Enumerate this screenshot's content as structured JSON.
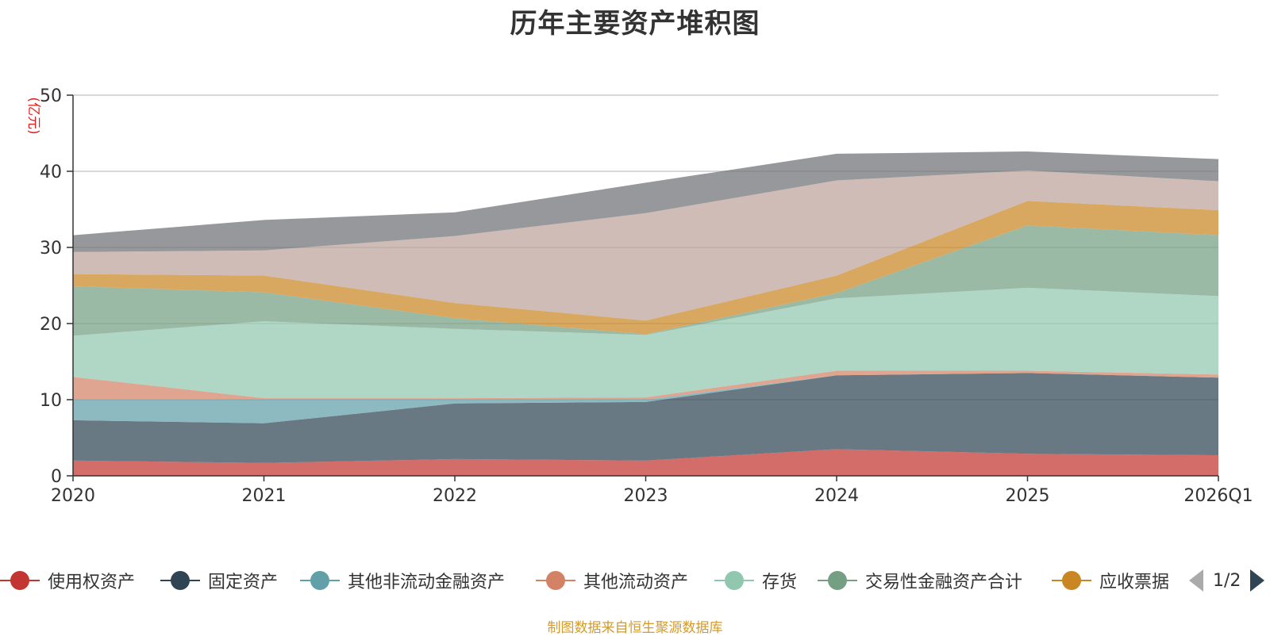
{
  "colors": {
    "use_right": "#c23531",
    "fixed": "#2f4554",
    "other_nc_fin": "#61a0a8",
    "other_current": "#d48265",
    "inventory": "#91c7ae",
    "trading_fin": "#749f83",
    "notes_receivable": "#ca8622",
    "series8": "#bda29a",
    "series9": "#6e7074"
  },
  "chart_data": {
    "type": "area",
    "stacked": true,
    "title": "历年主要资产堆积图",
    "ylabel": "(亿元)",
    "xlabel": "",
    "ylim": [
      0,
      50
    ],
    "yticks": [
      "0",
      "10",
      "20",
      "30",
      "40",
      "50"
    ],
    "grid": true,
    "legend_position": "bottom",
    "categories": [
      "2020",
      "2021",
      "2022",
      "2023",
      "2024",
      "2025",
      "2026Q1"
    ],
    "series": [
      {
        "name": "使用权资产",
        "color_key": "use_right",
        "in_legend": true,
        "values": [
          2.0,
          1.7,
          2.2,
          2.0,
          3.5,
          2.9,
          2.7
        ]
      },
      {
        "name": "固定资产",
        "color_key": "fixed",
        "in_legend": true,
        "values": [
          5.3,
          5.2,
          7.3,
          7.7,
          9.7,
          10.6,
          10.2
        ]
      },
      {
        "name": "其他非流动金融资产",
        "color_key": "other_nc_fin",
        "in_legend": true,
        "values": [
          2.7,
          3.1,
          0.5,
          0.3,
          0.0,
          0.0,
          0.0
        ]
      },
      {
        "name": "其他流动资产",
        "color_key": "other_current",
        "in_legend": true,
        "values": [
          3.0,
          0.2,
          0.2,
          0.3,
          0.6,
          0.3,
          0.4
        ]
      },
      {
        "name": "存货",
        "color_key": "inventory",
        "in_legend": true,
        "values": [
          5.4,
          10.1,
          9.1,
          8.2,
          9.5,
          10.9,
          10.3
        ]
      },
      {
        "name": "交易性金融资产合计",
        "color_key": "trading_fin",
        "in_legend": true,
        "values": [
          6.5,
          3.8,
          1.4,
          0.1,
          0.7,
          8.2,
          8.0
        ]
      },
      {
        "name": "应收票据",
        "color_key": "notes_receivable",
        "in_legend": true,
        "values": [
          1.6,
          2.2,
          2.0,
          1.8,
          2.3,
          3.2,
          3.3
        ]
      },
      {
        "name": "",
        "color_key": "series8",
        "in_legend": false,
        "values": [
          2.9,
          3.3,
          8.8,
          14.1,
          12.5,
          4.0,
          3.8
        ]
      },
      {
        "name": "",
        "color_key": "series9",
        "in_legend": false,
        "values": [
          2.2,
          4.0,
          3.1,
          4.0,
          3.5,
          2.5,
          2.9
        ]
      }
    ]
  },
  "legend": {
    "items": [
      {
        "label": "使用权资产",
        "color_key": "use_right"
      },
      {
        "label": "固定资产",
        "color_key": "fixed"
      },
      {
        "label": "其他非流动金融资产",
        "color_key": "other_nc_fin"
      },
      {
        "label": "其他流动资产",
        "color_key": "other_current"
      },
      {
        "label": "存货",
        "color_key": "inventory"
      },
      {
        "label": "交易性金融资产合计",
        "color_key": "trading_fin"
      },
      {
        "label": "应收票据",
        "color_key": "notes_receivable"
      }
    ],
    "page_text": "1/2"
  },
  "footer": {
    "source": "制图数据来自恒生聚源数据库"
  }
}
